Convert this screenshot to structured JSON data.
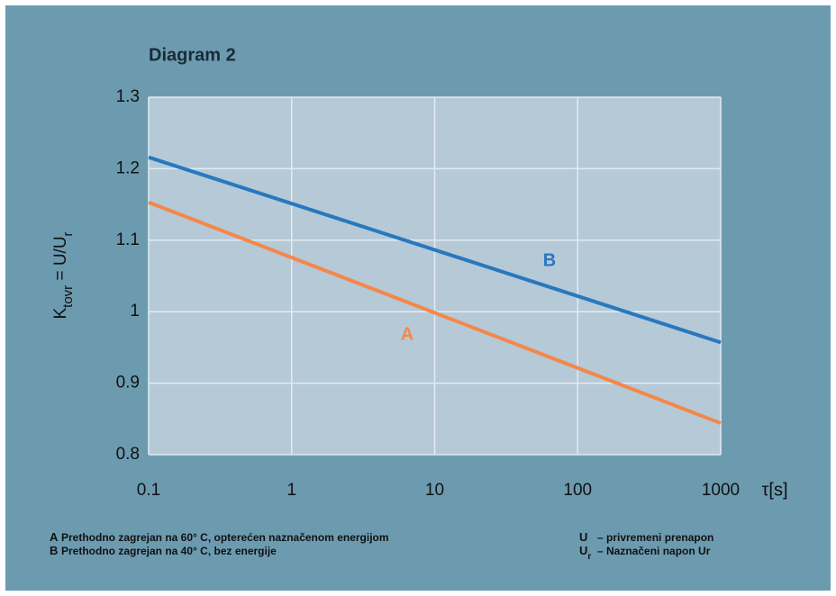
{
  "chart_data": {
    "type": "line",
    "title": "Diagram 2",
    "y_label_parts": [
      {
        "text": "K",
        "sub": false
      },
      {
        "text": "tovr",
        "sub": true
      },
      {
        "text": " = U/U",
        "sub": false
      },
      {
        "text": "r",
        "sub": true
      }
    ],
    "x_label": "τ[s]",
    "x": [
      0.1,
      1000
    ],
    "series": [
      {
        "name": "A",
        "color": "#f4874a",
        "values": [
          1.153,
          0.844
        ]
      },
      {
        "name": "B",
        "color": "#2878bf",
        "values": [
          1.216,
          0.957
        ]
      }
    ],
    "xlim": [
      0.1,
      1000
    ],
    "xticks": [
      0.1,
      1,
      10,
      100,
      1000
    ],
    "x_log": true,
    "ylim": [
      0.8,
      1.3
    ],
    "yticks": [
      0.8,
      0.9,
      1,
      1.1,
      1.2,
      1.3
    ],
    "grid": true,
    "notes_left": [
      {
        "key": "A",
        "text": "Prethodno zagrejan na 60° C, opterećen naznačenom energijom"
      },
      {
        "key": "B",
        "text": "Prethodno zagrejan na 40° C, bez energije"
      }
    ],
    "notes_right": [
      {
        "key": "U",
        "key_sub": "",
        "text": "– privremeni prenapon"
      },
      {
        "key": "U",
        "key_sub": "r",
        "text": "– Naznačeni napon Ur"
      }
    ]
  }
}
